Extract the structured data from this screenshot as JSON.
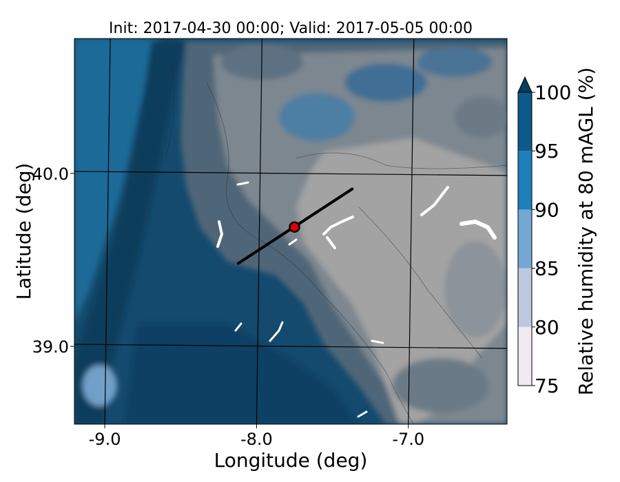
{
  "chart_data": {
    "type": "heatmap",
    "title": "Init: 2017-04-30 00:00; Valid: 2017-05-05 00:00",
    "xlabel": "Longitude (deg)",
    "ylabel": "Latitude (deg)",
    "xlim": [
      -9.2,
      -6.35
    ],
    "ylim": [
      38.55,
      40.78
    ],
    "x_ticks": [
      -9.0,
      -8.0,
      -7.0
    ],
    "x_tick_labels": [
      "-9.0",
      "-8.0",
      "-7.0"
    ],
    "y_ticks": [
      39.0,
      40.0
    ],
    "y_tick_labels": [
      "39.0",
      "40.0"
    ],
    "grid": true,
    "colorbar": {
      "label": "Relative humidity at 80 mAGL (%)",
      "levels": [
        75,
        80,
        85,
        90,
        95,
        100
      ],
      "tick_labels": [
        "75",
        "80",
        "85",
        "90",
        "95",
        "100"
      ],
      "colors": [
        "#efeaf3",
        "#bfc7e0",
        "#74a8d2",
        "#1f7fb8",
        "#0c5a8a"
      ],
      "extend": "max",
      "extend_color": "#083d5e",
      "position": "right"
    },
    "overlay_line": {
      "points": [
        [
          -8.12,
          39.48
        ],
        [
          -7.37,
          39.91
        ]
      ],
      "color": "#000000"
    },
    "marker": {
      "point": [
        -7.75,
        39.69
      ],
      "fill": "#e00000",
      "stroke": "#000000"
    },
    "terrain_shading_color": "#9a9a9a",
    "field_colors": {
      "dark": "#0b3c5c",
      "mid": "#144a6e",
      "blue": "#1f6a98",
      "gray_blue": "#4f6678",
      "gray": "#7d8790",
      "light_gray": "#a3a3a3"
    }
  }
}
